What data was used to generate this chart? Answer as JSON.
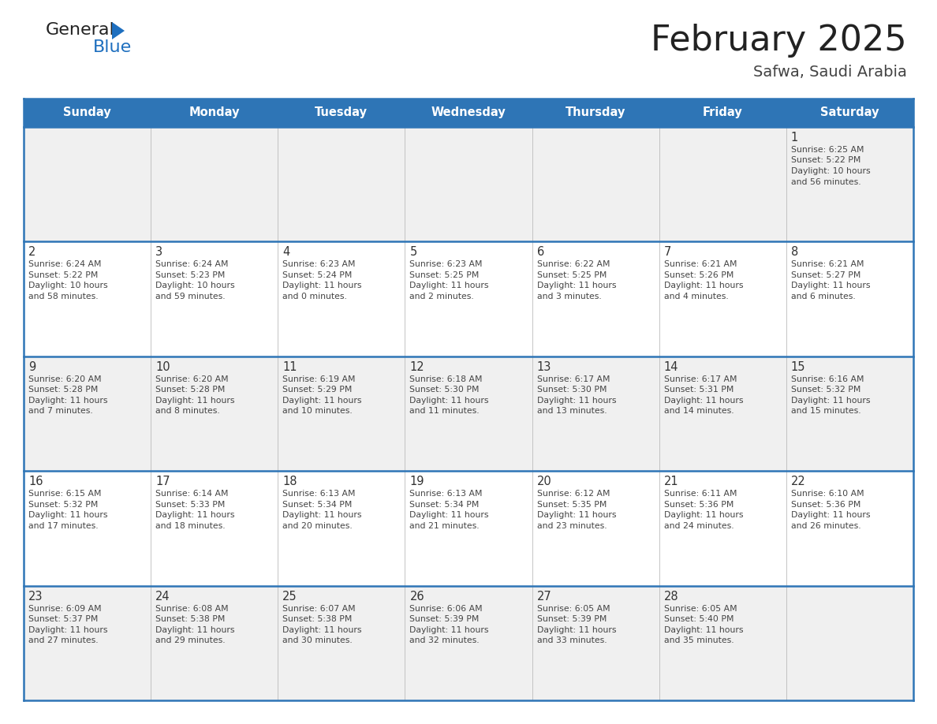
{
  "title": "February 2025",
  "subtitle": "Safwa, Saudi Arabia",
  "days_of_week": [
    "Sunday",
    "Monday",
    "Tuesday",
    "Wednesday",
    "Thursday",
    "Friday",
    "Saturday"
  ],
  "header_bg": "#2E75B6",
  "header_text_color": "#FFFFFF",
  "cell_bg_odd": "#F0F0F0",
  "cell_bg_even": "#FFFFFF",
  "border_color": "#2E75B6",
  "grid_color": "#BBBBBB",
  "text_color": "#444444",
  "day_number_color": "#333333",
  "logo_general_color": "#222222",
  "logo_blue_color": "#1E6FBF",
  "calendar_data": [
    [
      {
        "day": null,
        "sunrise": null,
        "sunset": null,
        "daylight": null
      },
      {
        "day": null,
        "sunrise": null,
        "sunset": null,
        "daylight": null
      },
      {
        "day": null,
        "sunrise": null,
        "sunset": null,
        "daylight": null
      },
      {
        "day": null,
        "sunrise": null,
        "sunset": null,
        "daylight": null
      },
      {
        "day": null,
        "sunrise": null,
        "sunset": null,
        "daylight": null
      },
      {
        "day": null,
        "sunrise": null,
        "sunset": null,
        "daylight": null
      },
      {
        "day": 1,
        "sunrise": "6:25 AM",
        "sunset": "5:22 PM",
        "daylight": "10 hours",
        "daylight2": "and 56 minutes."
      }
    ],
    [
      {
        "day": 2,
        "sunrise": "6:24 AM",
        "sunset": "5:22 PM",
        "daylight": "10 hours",
        "daylight2": "and 58 minutes."
      },
      {
        "day": 3,
        "sunrise": "6:24 AM",
        "sunset": "5:23 PM",
        "daylight": "10 hours",
        "daylight2": "and 59 minutes."
      },
      {
        "day": 4,
        "sunrise": "6:23 AM",
        "sunset": "5:24 PM",
        "daylight": "11 hours",
        "daylight2": "and 0 minutes."
      },
      {
        "day": 5,
        "sunrise": "6:23 AM",
        "sunset": "5:25 PM",
        "daylight": "11 hours",
        "daylight2": "and 2 minutes."
      },
      {
        "day": 6,
        "sunrise": "6:22 AM",
        "sunset": "5:25 PM",
        "daylight": "11 hours",
        "daylight2": "and 3 minutes."
      },
      {
        "day": 7,
        "sunrise": "6:21 AM",
        "sunset": "5:26 PM",
        "daylight": "11 hours",
        "daylight2": "and 4 minutes."
      },
      {
        "day": 8,
        "sunrise": "6:21 AM",
        "sunset": "5:27 PM",
        "daylight": "11 hours",
        "daylight2": "and 6 minutes."
      }
    ],
    [
      {
        "day": 9,
        "sunrise": "6:20 AM",
        "sunset": "5:28 PM",
        "daylight": "11 hours",
        "daylight2": "and 7 minutes."
      },
      {
        "day": 10,
        "sunrise": "6:20 AM",
        "sunset": "5:28 PM",
        "daylight": "11 hours",
        "daylight2": "and 8 minutes."
      },
      {
        "day": 11,
        "sunrise": "6:19 AM",
        "sunset": "5:29 PM",
        "daylight": "11 hours",
        "daylight2": "and 10 minutes."
      },
      {
        "day": 12,
        "sunrise": "6:18 AM",
        "sunset": "5:30 PM",
        "daylight": "11 hours",
        "daylight2": "and 11 minutes."
      },
      {
        "day": 13,
        "sunrise": "6:17 AM",
        "sunset": "5:30 PM",
        "daylight": "11 hours",
        "daylight2": "and 13 minutes."
      },
      {
        "day": 14,
        "sunrise": "6:17 AM",
        "sunset": "5:31 PM",
        "daylight": "11 hours",
        "daylight2": "and 14 minutes."
      },
      {
        "day": 15,
        "sunrise": "6:16 AM",
        "sunset": "5:32 PM",
        "daylight": "11 hours",
        "daylight2": "and 15 minutes."
      }
    ],
    [
      {
        "day": 16,
        "sunrise": "6:15 AM",
        "sunset": "5:32 PM",
        "daylight": "11 hours",
        "daylight2": "and 17 minutes."
      },
      {
        "day": 17,
        "sunrise": "6:14 AM",
        "sunset": "5:33 PM",
        "daylight": "11 hours",
        "daylight2": "and 18 minutes."
      },
      {
        "day": 18,
        "sunrise": "6:13 AM",
        "sunset": "5:34 PM",
        "daylight": "11 hours",
        "daylight2": "and 20 minutes."
      },
      {
        "day": 19,
        "sunrise": "6:13 AM",
        "sunset": "5:34 PM",
        "daylight": "11 hours",
        "daylight2": "and 21 minutes."
      },
      {
        "day": 20,
        "sunrise": "6:12 AM",
        "sunset": "5:35 PM",
        "daylight": "11 hours",
        "daylight2": "and 23 minutes."
      },
      {
        "day": 21,
        "sunrise": "6:11 AM",
        "sunset": "5:36 PM",
        "daylight": "11 hours",
        "daylight2": "and 24 minutes."
      },
      {
        "day": 22,
        "sunrise": "6:10 AM",
        "sunset": "5:36 PM",
        "daylight": "11 hours",
        "daylight2": "and 26 minutes."
      }
    ],
    [
      {
        "day": 23,
        "sunrise": "6:09 AM",
        "sunset": "5:37 PM",
        "daylight": "11 hours",
        "daylight2": "and 27 minutes."
      },
      {
        "day": 24,
        "sunrise": "6:08 AM",
        "sunset": "5:38 PM",
        "daylight": "11 hours",
        "daylight2": "and 29 minutes."
      },
      {
        "day": 25,
        "sunrise": "6:07 AM",
        "sunset": "5:38 PM",
        "daylight": "11 hours",
        "daylight2": "and 30 minutes."
      },
      {
        "day": 26,
        "sunrise": "6:06 AM",
        "sunset": "5:39 PM",
        "daylight": "11 hours",
        "daylight2": "and 32 minutes."
      },
      {
        "day": 27,
        "sunrise": "6:05 AM",
        "sunset": "5:39 PM",
        "daylight": "11 hours",
        "daylight2": "and 33 minutes."
      },
      {
        "day": 28,
        "sunrise": "6:05 AM",
        "sunset": "5:40 PM",
        "daylight": "11 hours",
        "daylight2": "and 35 minutes."
      },
      {
        "day": null,
        "sunrise": null,
        "sunset": null,
        "daylight": null,
        "daylight2": null
      }
    ]
  ]
}
